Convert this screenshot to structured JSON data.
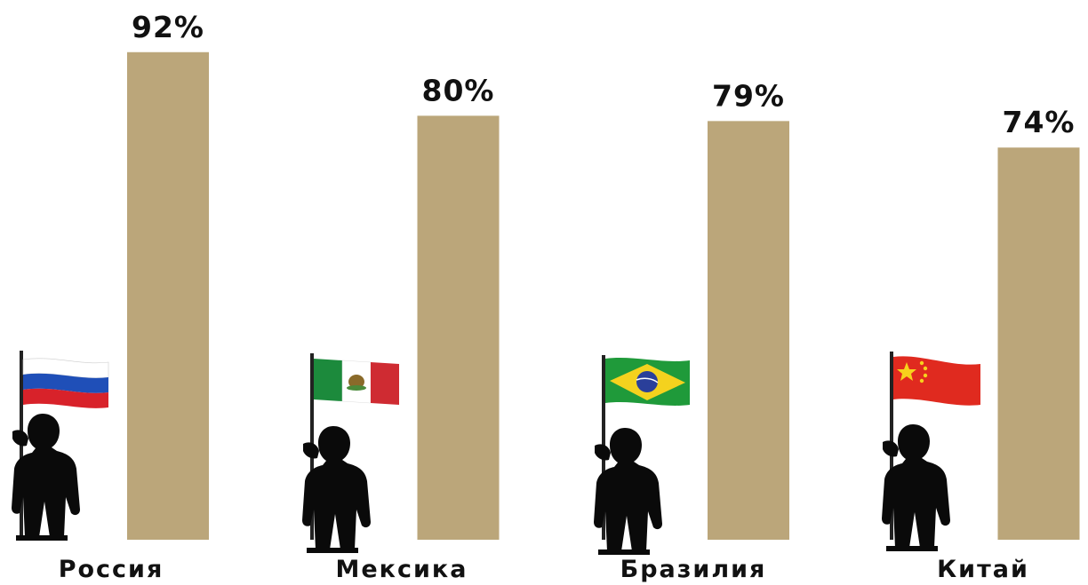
{
  "chart_data": {
    "type": "bar",
    "categories": [
      "Россия",
      "Мексика",
      "Бразилия",
      "Китай"
    ],
    "values": [
      92,
      80,
      79,
      74
    ],
    "value_labels": [
      "92%",
      "80%",
      "79%",
      "74%"
    ],
    "ylim": [
      0,
      100
    ],
    "grid": false,
    "legend": "none",
    "bar_color": "#bba67a",
    "flags": [
      "russia-flag",
      "mexico-flag",
      "brazil-flag",
      "china-flag"
    ]
  }
}
